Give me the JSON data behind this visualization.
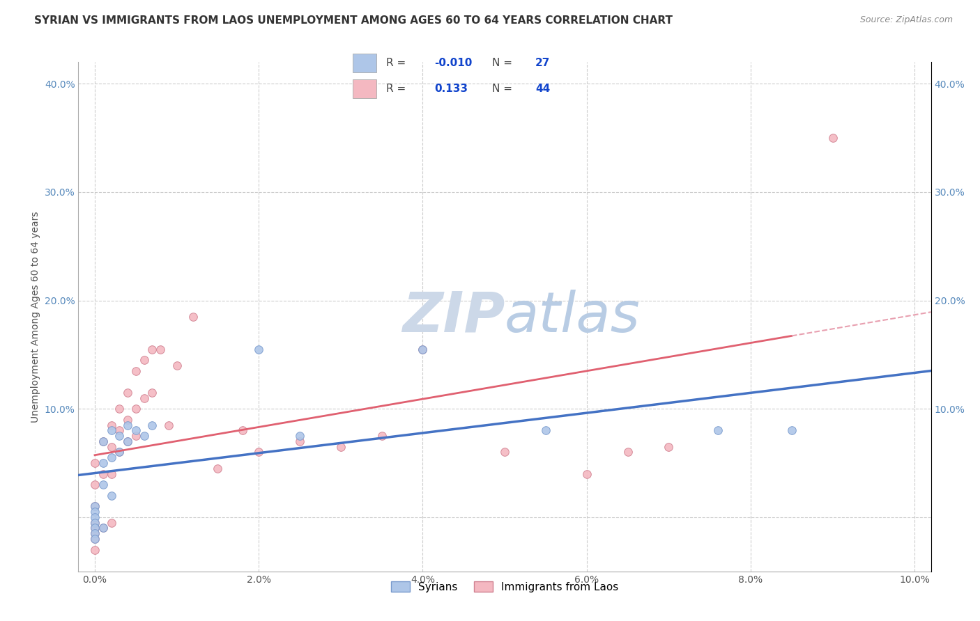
{
  "title": "SYRIAN VS IMMIGRANTS FROM LAOS UNEMPLOYMENT AMONG AGES 60 TO 64 YEARS CORRELATION CHART",
  "source": "Source: ZipAtlas.com",
  "ylabel": "Unemployment Among Ages 60 to 64 years",
  "xlabel": "",
  "xlim": [
    -0.002,
    0.102
  ],
  "ylim": [
    -0.05,
    0.42
  ],
  "xticks": [
    0.0,
    0.02,
    0.04,
    0.06,
    0.08,
    0.1
  ],
  "yticks": [
    0.0,
    0.1,
    0.2,
    0.3,
    0.4
  ],
  "xticklabels": [
    "0.0%",
    "2.0%",
    "4.0%",
    "6.0%",
    "8.0%",
    "10.0%"
  ],
  "yticklabels": [
    "",
    "10.0%",
    "20.0%",
    "30.0%",
    "40.0%"
  ],
  "right_yticklabels": [
    "",
    "10.0%",
    "20.0%",
    "30.0%",
    "40.0%"
  ],
  "legend_entries": [
    {
      "label": "Syrians",
      "R": "-0.010",
      "N": "27",
      "color": "#aec6e8"
    },
    {
      "label": "Immigrants from Laos",
      "R": "0.133",
      "N": "44",
      "color": "#f4b8c1"
    }
  ],
  "syrians_x": [
    0.0,
    0.0,
    0.0,
    0.0,
    0.0,
    0.0,
    0.0,
    0.001,
    0.001,
    0.001,
    0.001,
    0.002,
    0.002,
    0.002,
    0.003,
    0.003,
    0.004,
    0.004,
    0.005,
    0.006,
    0.007,
    0.02,
    0.025,
    0.04,
    0.055,
    0.076,
    0.085
  ],
  "syrians_y": [
    0.01,
    0.005,
    0.0,
    -0.005,
    -0.01,
    -0.015,
    -0.02,
    0.07,
    0.05,
    0.03,
    -0.01,
    0.08,
    0.055,
    0.02,
    0.075,
    0.06,
    0.085,
    0.07,
    0.08,
    0.075,
    0.085,
    0.155,
    0.075,
    0.155,
    0.08,
    0.08,
    0.08
  ],
  "laos_x": [
    0.0,
    0.0,
    0.0,
    0.0,
    0.0,
    0.0,
    0.0,
    0.0,
    0.001,
    0.001,
    0.001,
    0.002,
    0.002,
    0.002,
    0.002,
    0.003,
    0.003,
    0.003,
    0.004,
    0.004,
    0.004,
    0.005,
    0.005,
    0.005,
    0.006,
    0.006,
    0.007,
    0.007,
    0.008,
    0.009,
    0.01,
    0.012,
    0.015,
    0.018,
    0.02,
    0.025,
    0.03,
    0.035,
    0.04,
    0.05,
    0.06,
    0.065,
    0.07,
    0.09
  ],
  "laos_y": [
    0.05,
    0.03,
    0.01,
    -0.005,
    -0.01,
    -0.015,
    -0.02,
    -0.03,
    0.07,
    0.04,
    -0.01,
    0.085,
    0.065,
    0.04,
    -0.005,
    0.1,
    0.08,
    0.06,
    0.115,
    0.09,
    0.07,
    0.135,
    0.1,
    0.075,
    0.145,
    0.11,
    0.155,
    0.115,
    0.155,
    0.085,
    0.14,
    0.185,
    0.045,
    0.08,
    0.06,
    0.07,
    0.065,
    0.075,
    0.155,
    0.06,
    0.04,
    0.06,
    0.065,
    0.35
  ],
  "syrian_line_color": "#4472c4",
  "laos_line_color": "#e06070",
  "laos_line_dash_color": "#e8a0b0",
  "background_color": "#ffffff",
  "watermark_color": "#ccd8e8",
  "grid_color": "#c8c8c8",
  "title_fontsize": 11,
  "axis_tick_fontsize": 10,
  "ylabel_fontsize": 10,
  "marker_size": 70
}
